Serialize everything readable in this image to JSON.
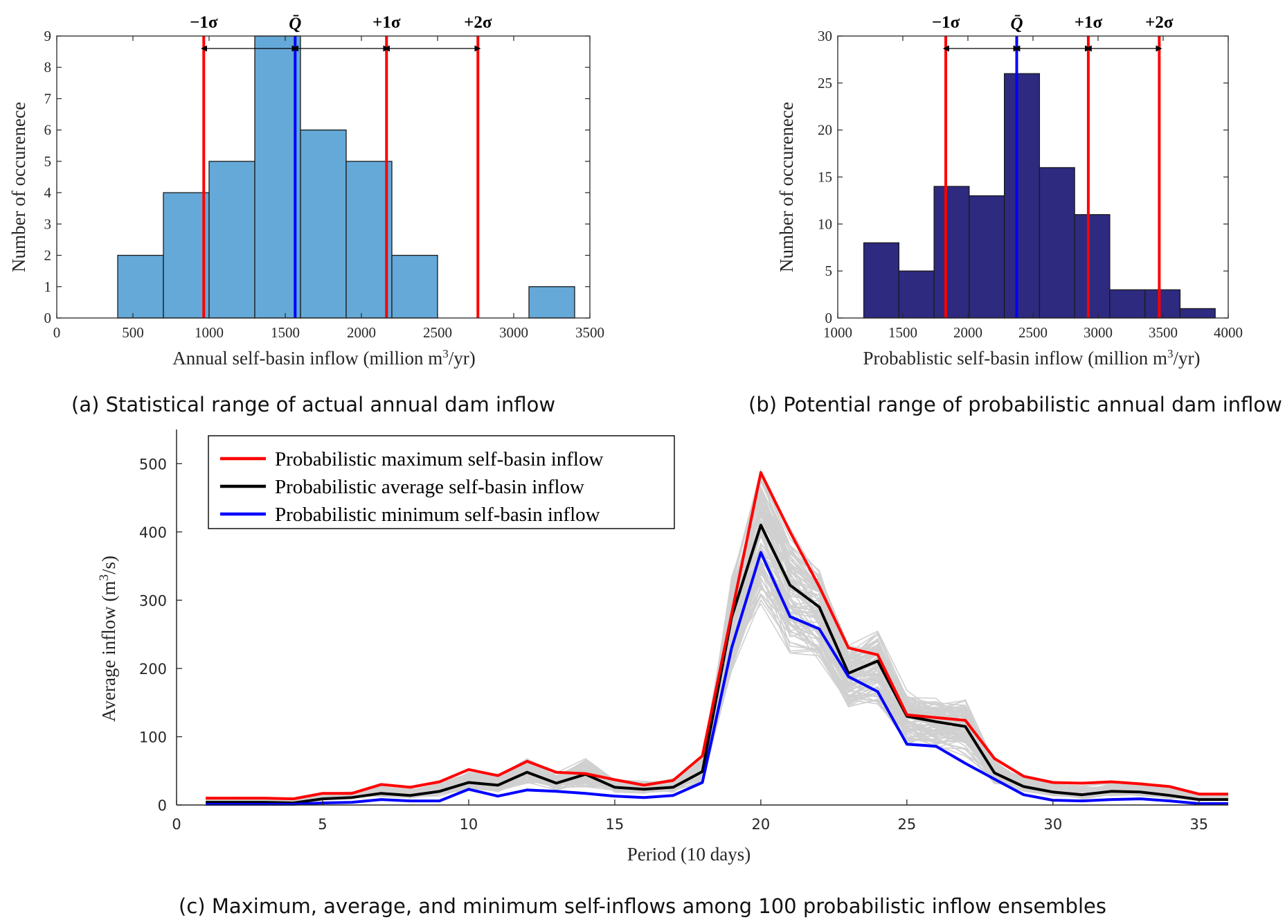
{
  "chart_data": [
    {
      "id": "a",
      "type": "bar",
      "caption": "(a) Statistical range of actual annual dam inflow",
      "xlabel_pre": "Annual self-basin inflow (million m",
      "xlabel_sup": "3",
      "xlabel_post": "/yr)",
      "ylabel": "Number of occurenece",
      "xlim": [
        0,
        3500
      ],
      "ylim": [
        0,
        9
      ],
      "xticks": [
        0,
        500,
        1000,
        1500,
        2000,
        2500,
        3000,
        3500
      ],
      "yticks": [
        0,
        1,
        2,
        3,
        4,
        5,
        6,
        7,
        8,
        9
      ],
      "bar_color": "#64a9d8",
      "bins": [
        {
          "from": 400,
          "to": 700,
          "count": 2
        },
        {
          "from": 700,
          "to": 1000,
          "count": 4
        },
        {
          "from": 1000,
          "to": 1300,
          "count": 5
        },
        {
          "from": 1300,
          "to": 1600,
          "count": 9
        },
        {
          "from": 1600,
          "to": 1900,
          "count": 6
        },
        {
          "from": 1900,
          "to": 2200,
          "count": 5
        },
        {
          "from": 2200,
          "to": 2500,
          "count": 2
        },
        {
          "from": 3100,
          "to": 3400,
          "count": 1
        }
      ],
      "mean_line": {
        "x": 1565,
        "label": "Q̄",
        "color": "#0000ff"
      },
      "sigma_lines": [
        {
          "x": 965,
          "label": "−1σ",
          "color": "#ff0000"
        },
        {
          "x": 2165,
          "label": "+1σ",
          "color": "#ff0000"
        },
        {
          "x": 2765,
          "label": "+2σ",
          "color": "#ff0000"
        }
      ]
    },
    {
      "id": "b",
      "type": "bar",
      "caption": "(b) Potential range of probabilistic annual dam inflow",
      "xlabel_pre": "Probablistic self-basin inflow (million m",
      "xlabel_sup": "3",
      "xlabel_post": "/yr)",
      "ylabel": "Number of occurenece",
      "xlim": [
        1000,
        4000
      ],
      "ylim": [
        0,
        30
      ],
      "xticks": [
        1000,
        1500,
        2000,
        2500,
        3000,
        3500,
        4000
      ],
      "yticks": [
        0,
        5,
        10,
        15,
        20,
        25,
        30
      ],
      "bar_color": "#2e2a80",
      "bins": [
        {
          "from": 1200,
          "to": 1470,
          "count": 8
        },
        {
          "from": 1470,
          "to": 1740,
          "count": 5
        },
        {
          "from": 1740,
          "to": 2010,
          "count": 14
        },
        {
          "from": 2010,
          "to": 2280,
          "count": 13
        },
        {
          "from": 2280,
          "to": 2550,
          "count": 26
        },
        {
          "from": 2550,
          "to": 2820,
          "count": 16
        },
        {
          "from": 2820,
          "to": 3090,
          "count": 11
        },
        {
          "from": 3090,
          "to": 3360,
          "count": 3
        },
        {
          "from": 3360,
          "to": 3630,
          "count": 3
        },
        {
          "from": 3630,
          "to": 3900,
          "count": 1
        }
      ],
      "mean_line": {
        "x": 2375,
        "label": "Q̄",
        "color": "#0000ff"
      },
      "sigma_lines": [
        {
          "x": 1830,
          "label": "−1σ",
          "color": "#ff0000"
        },
        {
          "x": 2925,
          "label": "+1σ",
          "color": "#ff0000"
        },
        {
          "x": 3470,
          "label": "+2σ",
          "color": "#ff0000"
        }
      ]
    },
    {
      "id": "c",
      "type": "line",
      "caption": "(c) Maximum, average, and minimum self-inflows among 100 probabilistic inflow ensembles",
      "xlabel": "Period (10 days)",
      "ylabel_pre": "Average inflow (m",
      "ylabel_sup": "3",
      "ylabel_post": "/s)",
      "xlim": [
        0,
        36
      ],
      "ylim": [
        0,
        550
      ],
      "xticks": [
        0,
        5,
        10,
        15,
        20,
        25,
        30,
        35
      ],
      "yticks": [
        0,
        100,
        200,
        300,
        400,
        500
      ],
      "x": [
        1,
        2,
        3,
        4,
        5,
        6,
        7,
        8,
        9,
        10,
        11,
        12,
        13,
        14,
        15,
        16,
        17,
        18,
        19,
        20,
        21,
        22,
        23,
        24,
        25,
        26,
        27,
        28,
        29,
        30,
        31,
        32,
        33,
        34,
        35,
        36
      ],
      "series": [
        {
          "name": "Probabilistic maximum self-basin inflow",
          "color": "#ff0000",
          "values": [
            10,
            10,
            10,
            9,
            17,
            17,
            30,
            26,
            34,
            52,
            43,
            64,
            48,
            46,
            37,
            29,
            36,
            72,
            280,
            487,
            400,
            320,
            230,
            220,
            132,
            128,
            124,
            68,
            42,
            33,
            32,
            34,
            31,
            27,
            16,
            16
          ]
        },
        {
          "name": "Probabilistic average self-basin inflow",
          "color": "#000000",
          "values": [
            4,
            4,
            4,
            3,
            9,
            11,
            17,
            14,
            20,
            33,
            29,
            48,
            32,
            45,
            26,
            23,
            26,
            49,
            275,
            410,
            322,
            290,
            193,
            211,
            130,
            122,
            115,
            47,
            27,
            19,
            15,
            20,
            19,
            14,
            8,
            8
          ]
        },
        {
          "name": "Probabilistic minimum self-basin inflow",
          "color": "#0000ff",
          "values": [
            1,
            1,
            1,
            1,
            3,
            4,
            8,
            6,
            6,
            23,
            13,
            22,
            20,
            17,
            13,
            11,
            14,
            33,
            230,
            370,
            276,
            258,
            188,
            166,
            89,
            86,
            61,
            38,
            15,
            7,
            6,
            8,
            9,
            6,
            2,
            2
          ]
        }
      ],
      "ensemble_color": "#d0d0d0",
      "ensemble_count": 100
    }
  ]
}
